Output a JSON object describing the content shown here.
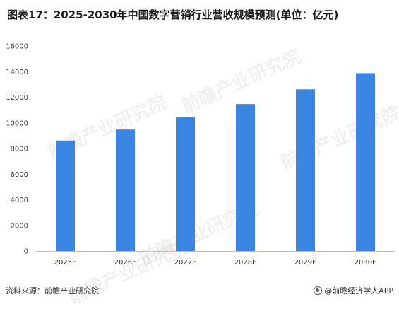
{
  "title": "图表17：2025-2030年中国数字营销行业营收规模预测(单位：亿元)",
  "footer": {
    "source": "资料来源：前瞻产业研究院",
    "brand": "@前瞻经济学人APP"
  },
  "watermark": "前瞻产业研究院",
  "colors": {
    "bar": "#3a85e4",
    "axis": "#bfbfbf"
  },
  "chart_data": {
    "type": "bar",
    "title": "图表17：2025-2030年中国数字营销行业营收规模预测(单位：亿元)",
    "xlabel": "",
    "ylabel": "",
    "categories": [
      "2025E",
      "2026E",
      "2027E",
      "2028E",
      "2029E",
      "2030E"
    ],
    "values": [
      8620,
      9480,
      10430,
      11470,
      12620,
      13880
    ],
    "ylim": [
      0,
      16000
    ],
    "yticks": [
      0,
      2000,
      4000,
      6000,
      8000,
      10000,
      12000,
      14000,
      16000
    ],
    "grid": false,
    "legend": "none"
  }
}
